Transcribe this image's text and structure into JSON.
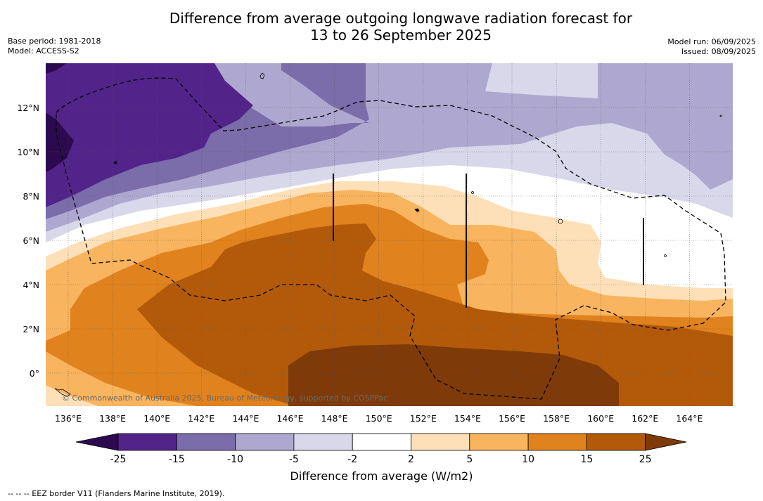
{
  "title": {
    "line1": "Difference from average outgoing longwave radiation forecast for",
    "line2": "13 to 26 September 2025"
  },
  "meta_left": {
    "base_period": "Base period: 1981-2018",
    "model": "Model: ACCESS-S2"
  },
  "meta_right": {
    "model_run": "Model run: 06/09/2025",
    "issued": "Issued: 08/09/2025"
  },
  "map": {
    "lat_labels": [
      "12°N",
      "10°N",
      "8°N",
      "6°N",
      "4°N",
      "2°N",
      "0°"
    ],
    "lon_labels": [
      "136°E",
      "138°E",
      "140°E",
      "142°E",
      "144°E",
      "146°E",
      "148°E",
      "150°E",
      "152°E",
      "154°E",
      "156°E",
      "158°E",
      "160°E",
      "162°E",
      "164°E"
    ],
    "copyright": "© Commonwealth of Australia 2025, Bureau of Meteorology, supported by COSPPac"
  },
  "colorbar": {
    "ticks": [
      "-25",
      "-15",
      "-10",
      "-5",
      "-2",
      "2",
      "5",
      "10",
      "15",
      "25"
    ],
    "colors": [
      "#2d0a4f",
      "#52248a",
      "#7b6caa",
      "#aea8d0",
      "#d8d8ea",
      "#ffffff",
      "#fde0b8",
      "#f8b45e",
      "#e0821e",
      "#b35a0a",
      "#7e3a08"
    ],
    "title": "Difference from average (W/m2)"
  },
  "footer": {
    "legend_text": "--  --  -- EEZ border V11 (Flanders Marine Institute, 2019)."
  }
}
